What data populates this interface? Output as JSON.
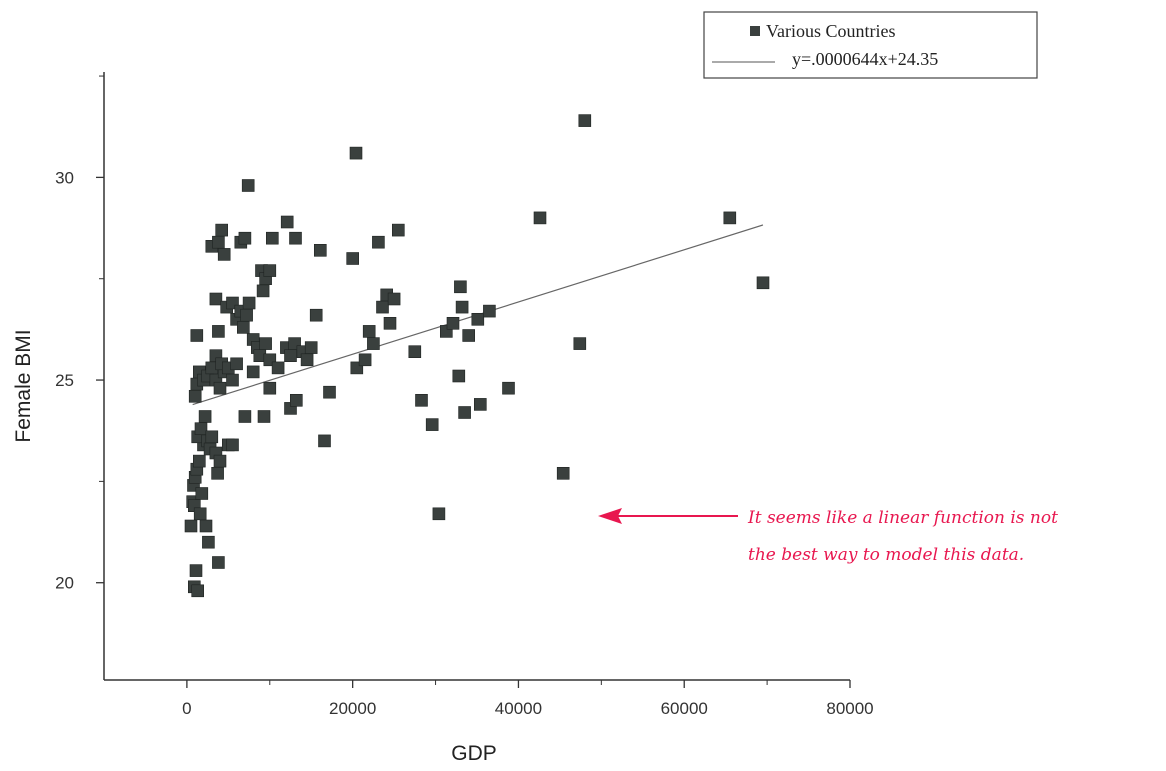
{
  "chart_data": {
    "type": "scatter",
    "title": "",
    "xlabel": "GDP",
    "ylabel": "Female BMI",
    "xlim": [
      -10000,
      80000
    ],
    "ylim": [
      17.6,
      32.6
    ],
    "x_ticks": [
      "0",
      "20000",
      "40000",
      "60000",
      "80000"
    ],
    "y_ticks": [
      "20",
      "25",
      "30"
    ],
    "grid": false,
    "legend": {
      "placement": "top-right",
      "entries": [
        {
          "label": "Various Countries",
          "kind": "marker"
        },
        {
          "label": "y=.0000644x+24.35",
          "kind": "line"
        }
      ]
    },
    "series": [
      {
        "name": "Various Countries",
        "color": "#3a403e",
        "marker": "square",
        "points": [
          [
            500,
            21.4
          ],
          [
            700,
            22.0
          ],
          [
            800,
            22.4
          ],
          [
            900,
            21.9
          ],
          [
            1000,
            22.6
          ],
          [
            1100,
            20.3
          ],
          [
            900,
            19.9
          ],
          [
            1300,
            19.8
          ],
          [
            1200,
            22.8
          ],
          [
            1500,
            23.0
          ],
          [
            1800,
            22.2
          ],
          [
            1600,
            21.7
          ],
          [
            2000,
            23.4
          ],
          [
            1300,
            23.6
          ],
          [
            1700,
            23.8
          ],
          [
            2200,
            24.1
          ],
          [
            2500,
            23.5
          ],
          [
            2800,
            23.3
          ],
          [
            3000,
            23.6
          ],
          [
            3500,
            23.2
          ],
          [
            4000,
            23.0
          ],
          [
            3700,
            22.7
          ],
          [
            2300,
            21.4
          ],
          [
            2600,
            21.0
          ],
          [
            3800,
            20.5
          ],
          [
            5000,
            23.4
          ],
          [
            5500,
            23.4
          ],
          [
            1000,
            24.6
          ],
          [
            1200,
            24.9
          ],
          [
            1500,
            25.2
          ],
          [
            2000,
            25.0
          ],
          [
            2500,
            25.1
          ],
          [
            3000,
            25.3
          ],
          [
            3500,
            25.0
          ],
          [
            4000,
            24.8
          ],
          [
            4500,
            25.2
          ],
          [
            1200,
            26.1
          ],
          [
            3500,
            25.6
          ],
          [
            4200,
            25.4
          ],
          [
            5000,
            25.3
          ],
          [
            5500,
            25.0
          ],
          [
            6000,
            25.4
          ],
          [
            3800,
            26.2
          ],
          [
            3500,
            27.0
          ],
          [
            4800,
            26.8
          ],
          [
            5500,
            26.9
          ],
          [
            6000,
            26.5
          ],
          [
            6500,
            26.7
          ],
          [
            6800,
            26.3
          ],
          [
            7200,
            26.6
          ],
          [
            7500,
            26.9
          ],
          [
            3000,
            28.3
          ],
          [
            3800,
            28.4
          ],
          [
            4200,
            28.7
          ],
          [
            4500,
            28.1
          ],
          [
            6500,
            28.4
          ],
          [
            7000,
            28.5
          ],
          [
            7400,
            29.8
          ],
          [
            9000,
            27.7
          ],
          [
            9500,
            27.5
          ],
          [
            10000,
            27.7
          ],
          [
            9200,
            27.2
          ],
          [
            8000,
            26.0
          ],
          [
            8500,
            25.8
          ],
          [
            8800,
            25.6
          ],
          [
            9500,
            25.9
          ],
          [
            10000,
            25.5
          ],
          [
            11000,
            25.3
          ],
          [
            12000,
            25.8
          ],
          [
            12500,
            25.6
          ],
          [
            13000,
            25.9
          ],
          [
            14000,
            25.7
          ],
          [
            14500,
            25.5
          ],
          [
            15000,
            25.8
          ],
          [
            10000,
            24.8
          ],
          [
            9300,
            24.1
          ],
          [
            12500,
            24.3
          ],
          [
            13200,
            24.5
          ],
          [
            7000,
            24.1
          ],
          [
            8000,
            25.2
          ],
          [
            10300,
            28.5
          ],
          [
            12100,
            28.9
          ],
          [
            13100,
            28.5
          ],
          [
            15600,
            26.6
          ],
          [
            16100,
            28.2
          ],
          [
            16600,
            23.5
          ],
          [
            17200,
            24.7
          ],
          [
            20000,
            28.0
          ],
          [
            20400,
            30.6
          ],
          [
            20500,
            25.3
          ],
          [
            21500,
            25.5
          ],
          [
            22000,
            26.2
          ],
          [
            22500,
            25.9
          ],
          [
            23100,
            28.4
          ],
          [
            23600,
            26.8
          ],
          [
            24100,
            27.1
          ],
          [
            24500,
            26.4
          ],
          [
            25000,
            27.0
          ],
          [
            25500,
            28.7
          ],
          [
            27500,
            25.7
          ],
          [
            28300,
            24.5
          ],
          [
            29600,
            23.9
          ],
          [
            30400,
            21.7
          ],
          [
            31300,
            26.2
          ],
          [
            32100,
            26.4
          ],
          [
            32800,
            25.1
          ],
          [
            33000,
            27.3
          ],
          [
            33200,
            26.8
          ],
          [
            33500,
            24.2
          ],
          [
            34000,
            26.1
          ],
          [
            35100,
            26.5
          ],
          [
            35400,
            24.4
          ],
          [
            36500,
            26.7
          ],
          [
            38800,
            24.8
          ],
          [
            42600,
            29.0
          ],
          [
            45400,
            22.7
          ],
          [
            47400,
            25.9
          ],
          [
            48000,
            31.4
          ],
          [
            65500,
            29.0
          ],
          [
            69500,
            27.4
          ]
        ]
      }
    ],
    "fit_line": {
      "name": "y=.0000644x+24.35",
      "equation": "y=.0000644x+24.35",
      "x_range": [
        700,
        69500
      ],
      "slope": 6.44e-05,
      "intercept": 24.35,
      "color": "#666666"
    }
  },
  "annotation": {
    "lines": [
      "It seems like a linear function is not",
      "the best way to model this data."
    ],
    "color": "#e8174f"
  }
}
